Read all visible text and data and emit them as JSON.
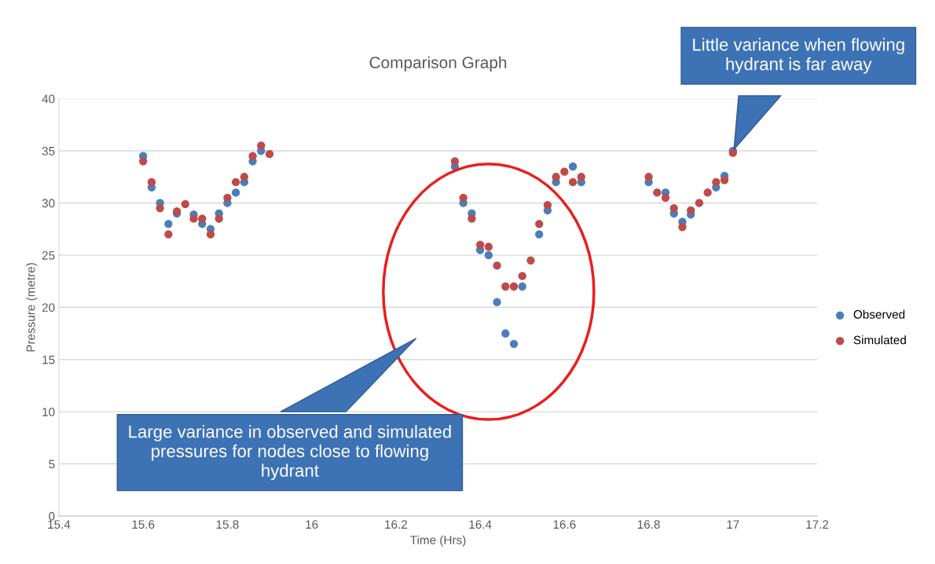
{
  "chart_data": {
    "type": "scatter",
    "title": "Comparison Graph",
    "xlabel": "Time (Hrs)",
    "ylabel": "Pressure (metre)",
    "x": [
      15.6,
      15.62,
      15.64,
      15.66,
      15.68,
      15.7,
      15.72,
      15.74,
      15.76,
      15.78,
      15.8,
      15.82,
      15.84,
      15.86,
      15.88,
      15.9,
      16.34,
      16.36,
      16.38,
      16.4,
      16.42,
      16.44,
      16.46,
      16.48,
      16.5,
      16.52,
      16.54,
      16.56,
      16.58,
      16.6,
      16.62,
      16.64,
      16.8,
      16.82,
      16.84,
      16.86,
      16.88,
      16.9,
      16.92,
      16.94,
      16.96,
      16.98,
      17.0
    ],
    "series": [
      {
        "name": "Observed",
        "color": "#4a7ebb",
        "values": [
          34.5,
          31.5,
          30.0,
          28.0,
          29.0,
          null,
          28.9,
          28.0,
          27.5,
          29.0,
          30.0,
          31.0,
          32.0,
          34.0,
          35.0,
          null,
          33.5,
          30.0,
          29.0,
          25.5,
          25.0,
          20.5,
          17.5,
          16.5,
          22.0,
          null,
          27.0,
          29.3,
          32.0,
          null,
          33.5,
          32.0,
          32.0,
          null,
          31.0,
          29.0,
          28.2,
          28.9,
          null,
          null,
          31.5,
          32.6,
          35.0
        ]
      },
      {
        "name": "Simulated",
        "color": "#be4b48",
        "values": [
          34.0,
          32.0,
          29.5,
          27.0,
          29.2,
          29.9,
          28.5,
          28.5,
          27.0,
          28.5,
          30.5,
          32.0,
          32.5,
          34.5,
          35.5,
          34.7,
          34.0,
          30.5,
          28.5,
          26.0,
          25.8,
          24.0,
          22.0,
          22.0,
          23.0,
          24.5,
          28.0,
          29.8,
          32.5,
          33.0,
          32.0,
          32.5,
          32.5,
          31.0,
          30.5,
          29.5,
          27.7,
          29.3,
          30.0,
          31.0,
          32.0,
          32.2,
          34.8
        ]
      }
    ],
    "xlim": [
      15.4,
      17.2
    ],
    "xticks": [
      15.4,
      15.6,
      15.8,
      16,
      16.2,
      16.4,
      16.6,
      16.8,
      17,
      17.2
    ],
    "ylim": [
      0,
      40
    ],
    "yticks": [
      0,
      5,
      10,
      15,
      20,
      25,
      30,
      35,
      40
    ],
    "grid": "y",
    "legend": "right",
    "marker": "circle",
    "annotations": [
      "Large variance in observed and simulated pressures for nodes close to flowing hydrant",
      "Little variance when flowing hydrant is far away"
    ]
  }
}
